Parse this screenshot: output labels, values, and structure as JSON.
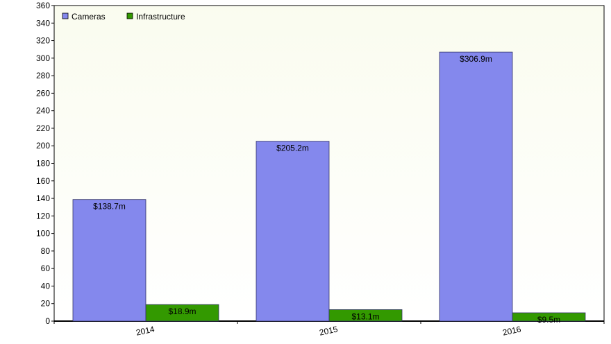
{
  "chart_data": {
    "type": "bar",
    "title": "",
    "xlabel": "",
    "ylabel": "",
    "categories": [
      "2014",
      "2015",
      "2016"
    ],
    "series": [
      {
        "name": "Cameras",
        "color": "#8488ed",
        "values": [
          138.7,
          205.2,
          306.9
        ],
        "labels": [
          "$138.7m",
          "$205.2m",
          "$306.9m"
        ]
      },
      {
        "name": "Infrastructure",
        "color": "#339900",
        "values": [
          18.9,
          13.1,
          9.5
        ],
        "labels": [
          "$18.9m",
          "$13.1m",
          "$9.5m"
        ]
      }
    ],
    "ylim": [
      0,
      360
    ],
    "yticks": [
      "0",
      "20",
      "40",
      "60",
      "80",
      "100",
      "120",
      "140",
      "160",
      "180",
      "200",
      "220",
      "240",
      "260",
      "280",
      "300",
      "320",
      "340",
      "360"
    ],
    "grid": false,
    "legend": "top-left",
    "background": "#fdfef5"
  }
}
